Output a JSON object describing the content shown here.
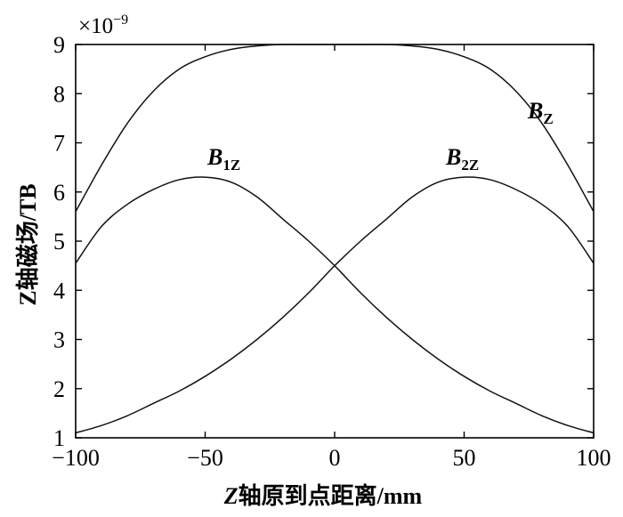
{
  "chart_data": {
    "type": "line",
    "xlabel": "Z轴原到点距离/mm",
    "xlabel_italic_prefix": "Z",
    "xlabel_rest": "轴原到点距离/mm",
    "ylabel": "Z轴磁场/TB",
    "y_multiplier": "×10",
    "y_multiplier_exponent": "−9",
    "xlim": [
      -100,
      100
    ],
    "ylim": [
      1,
      9
    ],
    "x_ticks": [
      -100,
      -50,
      0,
      50,
      100
    ],
    "x_tick_labels": [
      "−100",
      "−50",
      "0",
      "50",
      "100"
    ],
    "y_ticks": [
      1,
      2,
      3,
      4,
      5,
      6,
      7,
      8,
      9
    ],
    "y_tick_labels": [
      "1",
      "2",
      "3",
      "4",
      "5",
      "6",
      "7",
      "8",
      "9"
    ],
    "grid": false,
    "x": [
      -100,
      -90,
      -80,
      -70,
      -60,
      -50,
      -40,
      -30,
      -20,
      -10,
      0,
      10,
      20,
      30,
      40,
      50,
      60,
      70,
      80,
      90,
      100
    ],
    "series": [
      {
        "name": "BZ",
        "label_main": "B",
        "label_sub": "Z",
        "values": [
          5.6,
          6.55,
          7.4,
          8.05,
          8.5,
          8.75,
          8.9,
          8.97,
          9.0,
          9.0,
          9.0,
          9.0,
          9.0,
          8.97,
          8.9,
          8.75,
          8.5,
          8.05,
          7.4,
          6.55,
          5.6
        ]
      },
      {
        "name": "B1Z",
        "label_main": "B",
        "label_sub": "1Z",
        "values": [
          4.55,
          5.3,
          5.75,
          6.05,
          6.25,
          6.3,
          6.2,
          5.9,
          5.45,
          5.0,
          4.5,
          3.95,
          3.45,
          3.0,
          2.6,
          2.25,
          1.95,
          1.7,
          1.45,
          1.25,
          1.1
        ]
      },
      {
        "name": "B2Z",
        "label_main": "B",
        "label_sub": "2Z",
        "values": [
          1.1,
          1.25,
          1.45,
          1.7,
          1.95,
          2.25,
          2.6,
          3.0,
          3.45,
          3.95,
          4.5,
          5.0,
          5.45,
          5.9,
          6.2,
          6.3,
          6.25,
          6.05,
          5.75,
          5.3,
          4.55
        ]
      }
    ]
  }
}
